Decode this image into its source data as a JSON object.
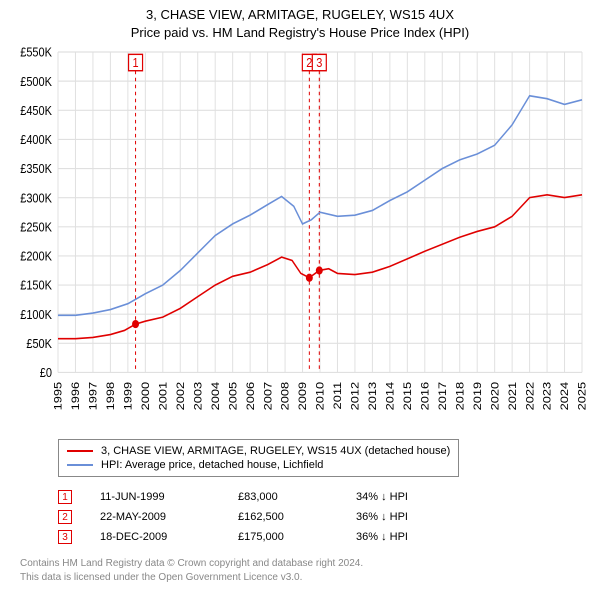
{
  "title_line1": "3, CHASE VIEW, ARMITAGE, RUGELEY, WS15 4UX",
  "title_line2": "Price paid vs. HM Land Registry's House Price Index (HPI)",
  "chart": {
    "type": "line",
    "background_color": "#ffffff",
    "grid_color": "#e0e0e0",
    "y_axis": {
      "min": 0,
      "max": 550000,
      "tick_step": 50000,
      "labels": [
        "£0",
        "£50K",
        "£100K",
        "£150K",
        "£200K",
        "£250K",
        "£300K",
        "£350K",
        "£400K",
        "£450K",
        "£500K",
        "£550K"
      ],
      "fontsize": 11
    },
    "x_axis": {
      "min": 1995,
      "max": 2025,
      "tick_step": 1,
      "labels": [
        "1995",
        "1996",
        "1997",
        "1998",
        "1999",
        "2000",
        "2001",
        "2002",
        "2003",
        "2004",
        "2005",
        "2006",
        "2007",
        "2008",
        "2009",
        "2010",
        "2011",
        "2012",
        "2013",
        "2014",
        "2015",
        "2016",
        "2017",
        "2018",
        "2019",
        "2020",
        "2021",
        "2022",
        "2023",
        "2024",
        "2025"
      ],
      "fontsize": 11,
      "rotate": -90
    },
    "series": [
      {
        "name": "property_price",
        "label": "3, CHASE VIEW, ARMITAGE, RUGELEY, WS15 4UX (detached house)",
        "color": "#e00000",
        "line_width": 1.4,
        "points": [
          [
            1995.0,
            58000
          ],
          [
            1996.0,
            58000
          ],
          [
            1997.0,
            60000
          ],
          [
            1998.0,
            65000
          ],
          [
            1998.8,
            72000
          ],
          [
            1999.44,
            83000
          ],
          [
            2000.0,
            88000
          ],
          [
            2001.0,
            95000
          ],
          [
            2002.0,
            110000
          ],
          [
            2003.0,
            130000
          ],
          [
            2004.0,
            150000
          ],
          [
            2005.0,
            165000
          ],
          [
            2006.0,
            172000
          ],
          [
            2007.0,
            185000
          ],
          [
            2007.8,
            198000
          ],
          [
            2008.4,
            192000
          ],
          [
            2008.9,
            170000
          ],
          [
            2009.39,
            162500
          ],
          [
            2009.96,
            175000
          ],
          [
            2010.5,
            178000
          ],
          [
            2011.0,
            170000
          ],
          [
            2012.0,
            168000
          ],
          [
            2013.0,
            172000
          ],
          [
            2014.0,
            182000
          ],
          [
            2015.0,
            195000
          ],
          [
            2016.0,
            208000
          ],
          [
            2017.0,
            220000
          ],
          [
            2018.0,
            232000
          ],
          [
            2019.0,
            242000
          ],
          [
            2020.0,
            250000
          ],
          [
            2021.0,
            268000
          ],
          [
            2022.0,
            300000
          ],
          [
            2023.0,
            305000
          ],
          [
            2024.0,
            300000
          ],
          [
            2025.0,
            305000
          ]
        ]
      },
      {
        "name": "hpi_lichfield",
        "label": "HPI: Average price, detached house, Lichfield",
        "color": "#6a8fd8",
        "line_width": 1.4,
        "points": [
          [
            1995.0,
            98000
          ],
          [
            1996.0,
            98000
          ],
          [
            1997.0,
            102000
          ],
          [
            1998.0,
            108000
          ],
          [
            1999.0,
            118000
          ],
          [
            2000.0,
            135000
          ],
          [
            2001.0,
            150000
          ],
          [
            2002.0,
            175000
          ],
          [
            2003.0,
            205000
          ],
          [
            2004.0,
            235000
          ],
          [
            2005.0,
            255000
          ],
          [
            2006.0,
            270000
          ],
          [
            2007.0,
            288000
          ],
          [
            2007.8,
            302000
          ],
          [
            2008.5,
            285000
          ],
          [
            2009.0,
            255000
          ],
          [
            2009.5,
            262000
          ],
          [
            2010.0,
            275000
          ],
          [
            2011.0,
            268000
          ],
          [
            2012.0,
            270000
          ],
          [
            2013.0,
            278000
          ],
          [
            2014.0,
            295000
          ],
          [
            2015.0,
            310000
          ],
          [
            2016.0,
            330000
          ],
          [
            2017.0,
            350000
          ],
          [
            2018.0,
            365000
          ],
          [
            2019.0,
            375000
          ],
          [
            2020.0,
            390000
          ],
          [
            2021.0,
            425000
          ],
          [
            2022.0,
            475000
          ],
          [
            2023.0,
            470000
          ],
          [
            2024.0,
            460000
          ],
          [
            2025.0,
            468000
          ]
        ]
      }
    ],
    "event_markers": [
      {
        "index": "1",
        "x": 1999.44,
        "y": 83000
      },
      {
        "index": "2",
        "x": 2009.39,
        "y": 162500
      },
      {
        "index": "3",
        "x": 2009.96,
        "y": 175000
      }
    ]
  },
  "legend": {
    "items": [
      {
        "color": "#e00000",
        "label": "3, CHASE VIEW, ARMITAGE, RUGELEY, WS15 4UX (detached house)"
      },
      {
        "color": "#6a8fd8",
        "label": "HPI: Average price, detached house, Lichfield"
      }
    ]
  },
  "events": [
    {
      "n": "1",
      "date": "11-JUN-1999",
      "price": "£83,000",
      "delta": "34% ↓ HPI"
    },
    {
      "n": "2",
      "date": "22-MAY-2009",
      "price": "£162,500",
      "delta": "36% ↓ HPI"
    },
    {
      "n": "3",
      "date": "18-DEC-2009",
      "price": "£175,000",
      "delta": "36% ↓ HPI"
    }
  ],
  "attribution": {
    "line1": "Contains HM Land Registry data © Crown copyright and database right 2024.",
    "line2": "This data is licensed under the Open Government Licence v3.0."
  }
}
